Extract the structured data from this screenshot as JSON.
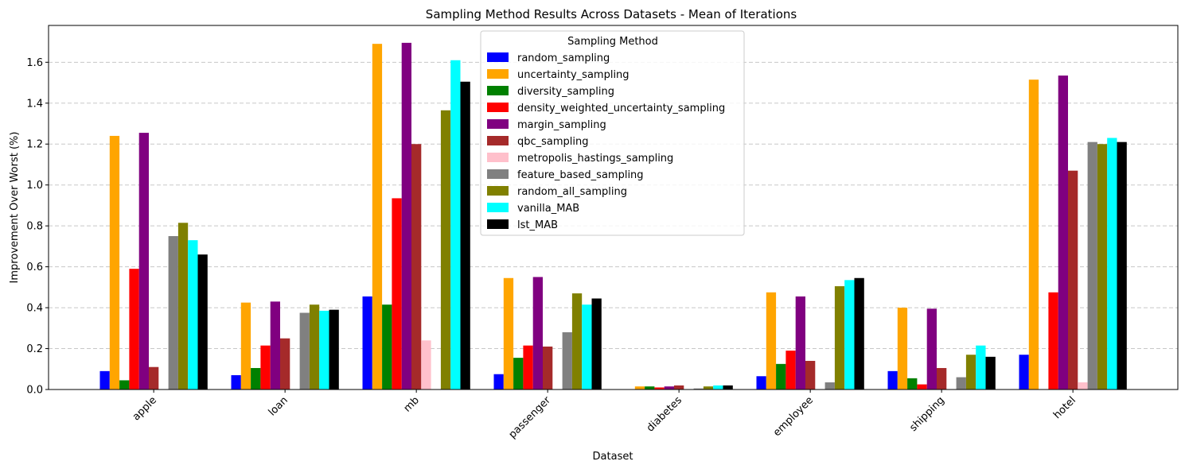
{
  "chart_data": {
    "type": "bar",
    "title": "Sampling Method Results Across Datasets - Mean of Iterations",
    "xlabel": "Dataset",
    "ylabel": "Improvement Over Worst (%)",
    "ylim": [
      0,
      1.78
    ],
    "yticks": [
      "0.0",
      "0.2",
      "0.4",
      "0.6",
      "0.8",
      "1.0",
      "1.2",
      "1.4",
      "1.6"
    ],
    "grid": "y-dashed",
    "legend": {
      "title": "Sampling Method",
      "placement": "top-center"
    },
    "categories": [
      "apple",
      "loan",
      "mb",
      "passenger",
      "diabetes",
      "employee",
      "shipping",
      "hotel"
    ],
    "series": [
      {
        "name": "random_sampling",
        "color": "#0000ff",
        "values": [
          0.09,
          0.07,
          0.455,
          0.075,
          0.0,
          0.065,
          0.09,
          0.17
        ]
      },
      {
        "name": "uncertainty_sampling",
        "color": "#ffa500",
        "values": [
          1.24,
          0.425,
          1.69,
          0.545,
          0.015,
          0.475,
          0.4,
          1.515
        ]
      },
      {
        "name": "diversity_sampling",
        "color": "#008000",
        "values": [
          0.045,
          0.105,
          0.415,
          0.155,
          0.015,
          0.125,
          0.055,
          0.0
        ]
      },
      {
        "name": "density_weighted_uncertainty_sampling",
        "color": "#ff0000",
        "values": [
          0.59,
          0.215,
          0.935,
          0.215,
          0.01,
          0.19,
          0.025,
          0.475
        ]
      },
      {
        "name": "margin_sampling",
        "color": "#800080",
        "values": [
          1.255,
          0.43,
          1.695,
          0.55,
          0.015,
          0.455,
          0.395,
          1.535
        ]
      },
      {
        "name": "qbc_sampling",
        "color": "#a52a2a",
        "values": [
          0.11,
          0.25,
          1.2,
          0.21,
          0.02,
          0.14,
          0.105,
          1.07
        ]
      },
      {
        "name": "metropolis_hastings_sampling",
        "color": "#ffc0cb",
        "values": [
          0.0,
          0.0,
          0.24,
          0.0,
          0.0,
          0.0,
          0.0,
          0.035
        ]
      },
      {
        "name": "feature_based_sampling",
        "color": "#808080",
        "values": [
          0.75,
          0.375,
          0.0,
          0.28,
          0.005,
          0.035,
          0.06,
          1.21
        ]
      },
      {
        "name": "random_all_sampling",
        "color": "#808000",
        "values": [
          0.815,
          0.415,
          1.365,
          0.47,
          0.015,
          0.505,
          0.17,
          1.2
        ]
      },
      {
        "name": "vanilla_MAB",
        "color": "#00ffff",
        "values": [
          0.73,
          0.385,
          1.61,
          0.415,
          0.02,
          0.535,
          0.215,
          1.23
        ]
      },
      {
        "name": "lst_MAB",
        "color": "#000000",
        "values": [
          0.66,
          0.39,
          1.505,
          0.445,
          0.02,
          0.545,
          0.16,
          1.21
        ]
      }
    ]
  }
}
